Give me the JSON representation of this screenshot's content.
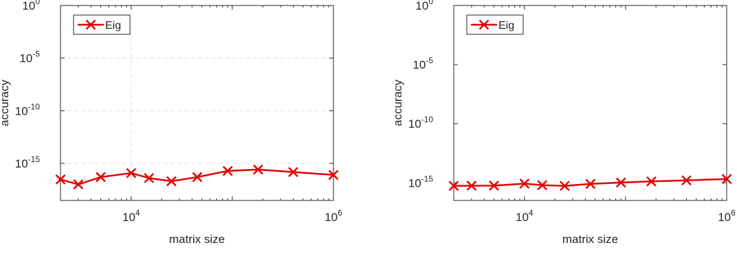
{
  "chart_data": [
    {
      "type": "line",
      "xlabel": "matrix size",
      "ylabel": "accuracy",
      "x_scale": "log",
      "y_scale": "log",
      "xlim": [
        2000,
        1000000
      ],
      "ylim": [
        3e-19,
        1
      ],
      "x_ticks": [
        {
          "value": 10000,
          "base": "10",
          "exp": "4"
        },
        {
          "value": 1000000,
          "base": "10",
          "exp": "6"
        }
      ],
      "y_ticks": [
        {
          "value": 1,
          "base": "10",
          "exp": "0"
        },
        {
          "value": 1e-05,
          "base": "10",
          "exp": "-5"
        },
        {
          "value": 1e-10,
          "base": "10",
          "exp": "-10"
        },
        {
          "value": 1e-15,
          "base": "10",
          "exp": "-15"
        }
      ],
      "grid": true,
      "legend": "top-left",
      "series": [
        {
          "name": "Eig",
          "color": "#e60000",
          "marker": "x",
          "x": [
            2000,
            3000,
            5000,
            10000,
            15000,
            25000,
            45000,
            90000,
            180000,
            400000,
            1000000
          ],
          "y": [
            3e-17,
            1e-17,
            5e-17,
            1.2e-16,
            4e-17,
            2e-17,
            5e-17,
            1.9e-16,
            2.6e-16,
            1.5e-16,
            8e-17
          ]
        }
      ]
    },
    {
      "type": "line",
      "xlabel": "matrix size",
      "ylabel": "accuracy",
      "x_scale": "log",
      "y_scale": "log",
      "xlim": [
        2000,
        1000000
      ],
      "ylim": [
        3.2e-17,
        1
      ],
      "x_ticks": [
        {
          "value": 10000,
          "base": "10",
          "exp": "4"
        },
        {
          "value": 1000000,
          "base": "10",
          "exp": "6"
        }
      ],
      "y_ticks": [
        {
          "value": 1,
          "base": "10",
          "exp": "0"
        },
        {
          "value": 1e-05,
          "base": "10",
          "exp": "-5"
        },
        {
          "value": 1e-10,
          "base": "10",
          "exp": "-10"
        },
        {
          "value": 1e-15,
          "base": "10",
          "exp": "-15"
        }
      ],
      "grid": false,
      "legend": "top-left",
      "series": [
        {
          "name": "Eig",
          "color": "#e60000",
          "marker": "x",
          "x": [
            2000,
            3000,
            5000,
            10000,
            15000,
            25000,
            45000,
            90000,
            180000,
            400000,
            1000000
          ],
          "y": [
            5.5e-16,
            5.7e-16,
            5.8e-16,
            8.5e-16,
            6.3e-16,
            5.5e-16,
            8e-16,
            1.05e-15,
            1.3e-15,
            1.6e-15,
            2.1e-15
          ]
        }
      ]
    }
  ]
}
